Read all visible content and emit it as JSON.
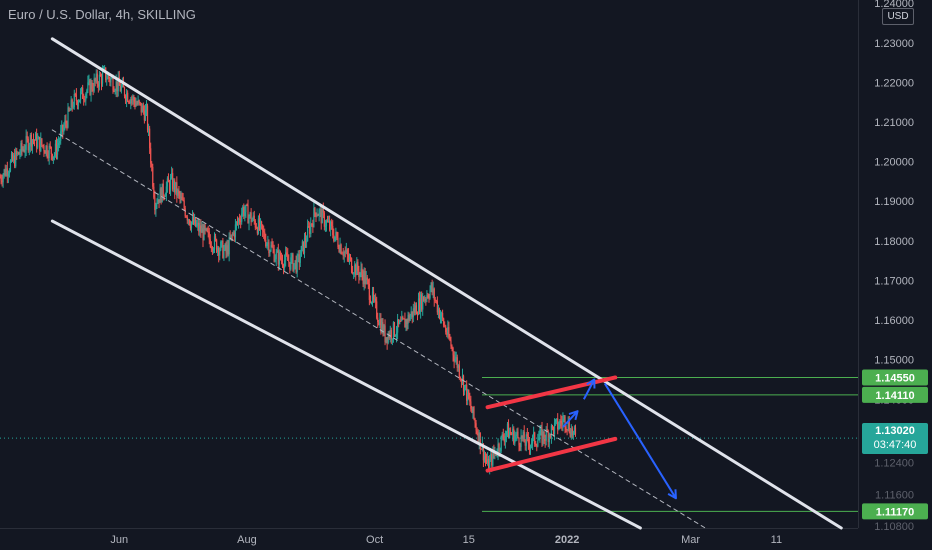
{
  "header": {
    "title": "Euro / U.S. Dollar, 4h, SKILLING"
  },
  "price_axis": {
    "currency_button": "USD"
  },
  "current_price": {
    "price": "1.13020",
    "countdown": "03:47:40",
    "color": "#26a69a"
  },
  "colors": {
    "background": "#131722",
    "up_candle": "#26a69a",
    "down_candle": "#ef5350",
    "channel": "#e0e3eb",
    "red_channel": "#f23645",
    "arrow": "#2962ff",
    "level": "#4caf50",
    "text": "#b2b5be"
  },
  "chart_data": {
    "type": "candlestick",
    "symbol": "Euro / U.S. Dollar",
    "interval": "4h",
    "source": "SKILLING",
    "y_ticks": [
      "1.24000",
      "1.23000",
      "1.22000",
      "1.21000",
      "1.20000",
      "1.19000",
      "1.18000",
      "1.17000",
      "1.16000",
      "1.15000",
      "1.14000",
      "1.13000",
      "1.12400",
      "1.11600",
      "1.10800"
    ],
    "y_tick_values": [
      1.24,
      1.23,
      1.22,
      1.21,
      1.2,
      1.19,
      1.18,
      1.17,
      1.16,
      1.15,
      1.14,
      1.13,
      1.124,
      1.116,
      1.108
    ],
    "x_ticks": [
      "Jun",
      "Aug",
      "Oct",
      "15",
      "2022",
      "Mar",
      "11"
    ],
    "x_tick_values": [
      "2021-06-01",
      "2021-08-01",
      "2021-10-01",
      "2021-11-15",
      "2022-01-01",
      "2022-03-01",
      "2022-04-11"
    ],
    "ylim": [
      1.1075,
      1.2408
    ],
    "xlim": [
      "2021-04-05",
      "2022-05-20"
    ],
    "price_levels": [
      {
        "label": "1.14550",
        "value": 1.1455
      },
      {
        "label": "1.14110",
        "value": 1.1411
      },
      {
        "label": "1.11170",
        "value": 1.1117
      }
    ],
    "current_price": 1.1302,
    "price_path": [
      [
        "2021-04-05",
        1.196
      ],
      [
        "2021-04-20",
        1.206
      ],
      [
        "2021-05-01",
        1.202
      ],
      [
        "2021-05-10",
        1.215
      ],
      [
        "2021-05-25",
        1.222
      ],
      [
        "2021-06-05",
        1.217
      ],
      [
        "2021-06-14",
        1.212
      ],
      [
        "2021-06-18",
        1.19
      ],
      [
        "2021-06-26",
        1.195
      ],
      [
        "2021-07-05",
        1.185
      ],
      [
        "2021-07-15",
        1.18
      ],
      [
        "2021-07-22",
        1.177
      ],
      [
        "2021-07-30",
        1.188
      ],
      [
        "2021-08-06",
        1.184
      ],
      [
        "2021-08-15",
        1.176
      ],
      [
        "2021-08-25",
        1.174
      ],
      [
        "2021-09-03",
        1.188
      ],
      [
        "2021-09-10",
        1.183
      ],
      [
        "2021-09-20",
        1.174
      ],
      [
        "2021-09-26",
        1.171
      ],
      [
        "2021-10-06",
        1.156
      ],
      [
        "2021-10-15",
        1.159
      ],
      [
        "2021-10-28",
        1.168
      ],
      [
        "2021-11-05",
        1.156
      ],
      [
        "2021-11-12",
        1.145
      ],
      [
        "2021-11-24",
        1.123
      ],
      [
        "2021-12-03",
        1.132
      ],
      [
        "2021-12-13",
        1.129
      ],
      [
        "2021-12-22",
        1.131
      ],
      [
        "2021-12-31",
        1.135
      ],
      [
        "2022-01-05",
        1.1302
      ]
    ],
    "drawings": {
      "main_channel_upper": [
        [
          "2021-04-30",
          1.231
        ],
        [
          "2022-05-12",
          1.1075
        ]
      ],
      "main_channel_lower": [
        [
          "2021-04-30",
          1.185
        ],
        [
          "2022-02-05",
          1.1075
        ]
      ],
      "main_channel_mid": [
        [
          "2021-04-30",
          1.208
        ],
        [
          "2022-03-08",
          1.1075
        ]
      ],
      "red_channel_upper": [
        [
          "2021-11-24",
          1.138
        ],
        [
          "2022-01-24",
          1.1455
        ]
      ],
      "red_channel_lower": [
        [
          "2021-11-24",
          1.122
        ],
        [
          "2022-01-24",
          1.13
        ]
      ],
      "arrows": [
        {
          "from": [
            "2021-12-30",
            1.133
          ],
          "to": [
            "2022-01-06",
            1.137
          ]
        },
        {
          "from": [
            "2022-01-09",
            1.14
          ],
          "to": [
            "2022-01-14",
            1.145
          ]
        },
        {
          "from": [
            "2022-01-19",
            1.144
          ],
          "to": [
            "2022-02-22",
            1.115
          ]
        }
      ]
    }
  }
}
